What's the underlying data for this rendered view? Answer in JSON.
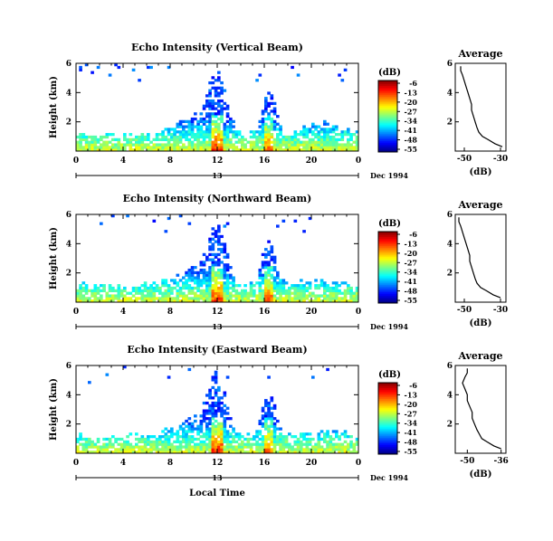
{
  "footer": {
    "x_title": "Local Time"
  },
  "chart_data": [
    {
      "type": "heatmap",
      "title": "Echo Intensity (Vertical Beam)",
      "ylabel": "Height (km)",
      "xlim": [
        0,
        24
      ],
      "ylim": [
        0,
        6
      ],
      "x_ticks": [
        "0",
        "4",
        "8",
        "12",
        "16",
        "20",
        "0"
      ],
      "y_ticks": [
        "2",
        "4",
        "6"
      ],
      "date_ticks": {
        "day_label": "13",
        "end_label": "Dec 1994"
      },
      "colorbar": {
        "title": "(dB)",
        "ticks": [
          "-6",
          "-13",
          "-20",
          "-27",
          "-34",
          "-41",
          "-48",
          "-55"
        ]
      },
      "profile": {
        "type": "line",
        "title": "Average",
        "xlabel": "(dB)",
        "x_ticks": [
          "-50",
          "-30"
        ],
        "xlim": [
          -55,
          -27
        ],
        "y_ticks": [
          "2",
          "4",
          "6"
        ],
        "ylim": [
          0,
          6
        ],
        "heights": [
          0.3,
          0.5,
          0.8,
          1.0,
          1.3,
          1.6,
          2.0,
          2.4,
          2.8,
          3.2,
          3.6,
          4.0,
          4.4,
          4.8,
          5.2,
          5.5,
          5.8
        ],
        "values": [
          -29,
          -33,
          -37,
          -40,
          -42,
          -43,
          -44,
          -45,
          -46,
          -46,
          -47,
          -48,
          -49,
          -50,
          -51,
          -52,
          -52
        ]
      }
    },
    {
      "type": "heatmap",
      "title": "Echo Intensity (Northward Beam)",
      "ylabel": "Height (km)",
      "xlim": [
        0,
        24
      ],
      "ylim": [
        0,
        6
      ],
      "x_ticks": [
        "0",
        "4",
        "8",
        "12",
        "16",
        "20",
        "0"
      ],
      "y_ticks": [
        "2",
        "4",
        "6"
      ],
      "date_ticks": {
        "day_label": "13",
        "end_label": "Dec 1994"
      },
      "colorbar": {
        "title": "(dB)",
        "ticks": [
          "-6",
          "-13",
          "-20",
          "-27",
          "-34",
          "-41",
          "-48",
          "-55"
        ]
      },
      "profile": {
        "type": "line",
        "title": "Average",
        "xlabel": "(dB)",
        "x_ticks": [
          "-50",
          "-30"
        ],
        "xlim": [
          -55,
          -27
        ],
        "y_ticks": [
          "2",
          "4",
          "6"
        ],
        "ylim": [
          0,
          6
        ],
        "heights": [
          0.3,
          0.5,
          0.8,
          1.0,
          1.3,
          1.6,
          2.0,
          2.4,
          2.8,
          3.2,
          3.6,
          4.0,
          4.4,
          4.8,
          5.2,
          5.5,
          5.8
        ],
        "values": [
          -30,
          -34,
          -38,
          -41,
          -43,
          -44,
          -45,
          -46,
          -47,
          -47,
          -48,
          -49,
          -50,
          -51,
          -52,
          -53,
          -53
        ]
      }
    },
    {
      "type": "heatmap",
      "title": "Echo Intensity (Eastward Beam)",
      "ylabel": "Height (km)",
      "xlim": [
        0,
        24
      ],
      "ylim": [
        0,
        6
      ],
      "x_ticks": [
        "0",
        "4",
        "8",
        "12",
        "16",
        "20",
        "0"
      ],
      "y_ticks": [
        "2",
        "4",
        "6"
      ],
      "date_ticks": {
        "day_label": "13",
        "end_label": "Dec 1994"
      },
      "colorbar": {
        "title": "(dB)",
        "ticks": [
          "-6",
          "-13",
          "-20",
          "-27",
          "-34",
          "-41",
          "-48",
          "-55"
        ]
      },
      "profile": {
        "type": "line",
        "title": "Average",
        "xlabel": "(dB)",
        "x_ticks": [
          "-50",
          "-36"
        ],
        "xlim": [
          -55,
          -34
        ],
        "y_ticks": [
          "2",
          "4",
          "6"
        ],
        "ylim": [
          0,
          6
        ],
        "heights": [
          0.3,
          0.5,
          0.8,
          1.0,
          1.3,
          1.6,
          2.0,
          2.4,
          2.8,
          3.2,
          3.6,
          4.0,
          4.4,
          4.8,
          5.2,
          5.5,
          5.8
        ],
        "values": [
          -36,
          -39,
          -42,
          -44,
          -45,
          -46,
          -47,
          -48,
          -48,
          -49,
          -50,
          -50,
          -51,
          -52,
          -51,
          -50,
          -50
        ]
      }
    }
  ]
}
